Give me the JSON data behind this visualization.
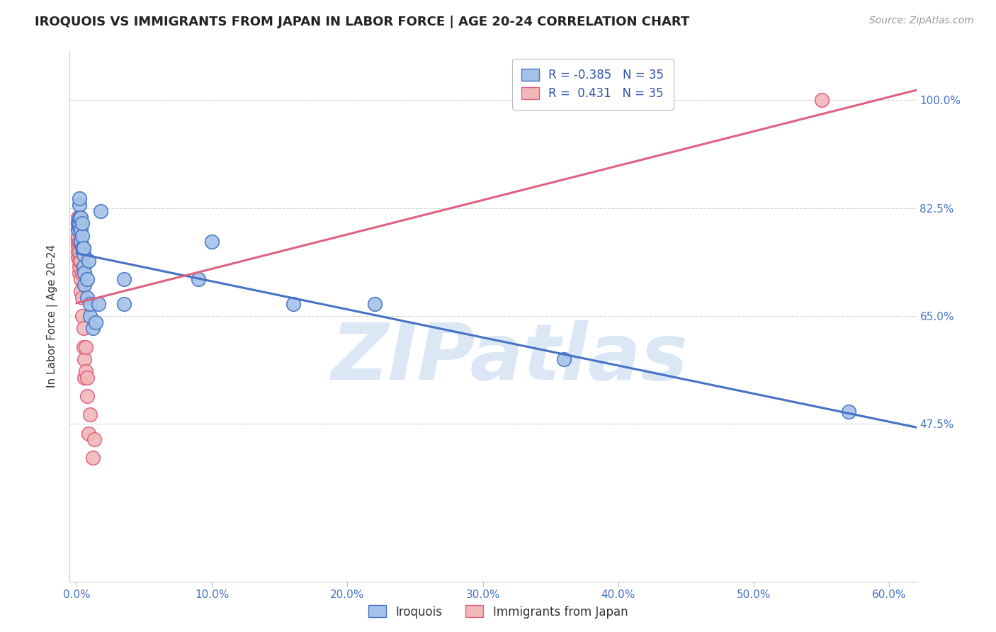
{
  "title": "IROQUOIS VS IMMIGRANTS FROM JAPAN IN LABOR FORCE | AGE 20-24 CORRELATION CHART",
  "source": "Source: ZipAtlas.com",
  "xlabel_vals": [
    0.0,
    0.1,
    0.2,
    0.3,
    0.4,
    0.5,
    0.6
  ],
  "ylabel_vals": [
    0.475,
    0.65,
    0.825,
    1.0
  ],
  "ylabel_label": "In Labor Force | Age 20-24",
  "xlim": [
    -0.005,
    0.62
  ],
  "ylim": [
    0.22,
    1.08
  ],
  "legend_labels": [
    "Iroquois",
    "Immigrants from Japan"
  ],
  "legend_r": [
    -0.385,
    0.431
  ],
  "legend_n": [
    35,
    35
  ],
  "watermark": "ZIPatlas",
  "watermark_color": "#b8d0ed",
  "iroquois_color": "#a4c2e8",
  "japan_color": "#f0b8b8",
  "iroquois_line_color": "#4472c4",
  "japan_line_color": "#e06080",
  "iroquois_x": [
    0.001,
    0.001,
    0.002,
    0.002,
    0.002,
    0.002,
    0.002,
    0.003,
    0.003,
    0.003,
    0.004,
    0.004,
    0.004,
    0.005,
    0.005,
    0.005,
    0.006,
    0.006,
    0.008,
    0.008,
    0.009,
    0.01,
    0.01,
    0.012,
    0.014,
    0.016,
    0.018,
    0.035,
    0.035,
    0.09,
    0.1,
    0.16,
    0.22,
    0.36,
    0.57
  ],
  "iroquois_y": [
    0.79,
    0.8,
    0.795,
    0.8,
    0.81,
    0.83,
    0.84,
    0.77,
    0.79,
    0.81,
    0.76,
    0.78,
    0.8,
    0.73,
    0.75,
    0.76,
    0.7,
    0.72,
    0.68,
    0.71,
    0.74,
    0.65,
    0.67,
    0.63,
    0.64,
    0.67,
    0.82,
    0.67,
    0.71,
    0.71,
    0.77,
    0.67,
    0.67,
    0.58,
    0.495
  ],
  "japan_x": [
    0.001,
    0.001,
    0.001,
    0.001,
    0.001,
    0.001,
    0.001,
    0.001,
    0.001,
    0.002,
    0.002,
    0.002,
    0.002,
    0.002,
    0.002,
    0.003,
    0.003,
    0.003,
    0.003,
    0.004,
    0.004,
    0.004,
    0.005,
    0.005,
    0.006,
    0.006,
    0.007,
    0.007,
    0.008,
    0.008,
    0.009,
    0.01,
    0.012,
    0.013,
    0.55
  ],
  "japan_y": [
    0.745,
    0.755,
    0.765,
    0.77,
    0.775,
    0.78,
    0.79,
    0.8,
    0.81,
    0.72,
    0.73,
    0.74,
    0.755,
    0.77,
    0.79,
    0.69,
    0.71,
    0.74,
    0.77,
    0.65,
    0.68,
    0.72,
    0.6,
    0.63,
    0.55,
    0.58,
    0.56,
    0.6,
    0.52,
    0.55,
    0.46,
    0.49,
    0.42,
    0.45,
    1.0
  ],
  "title_fontsize": 13,
  "axis_label_fontsize": 11,
  "tick_fontsize": 11,
  "legend_fontsize": 12,
  "source_fontsize": 10
}
